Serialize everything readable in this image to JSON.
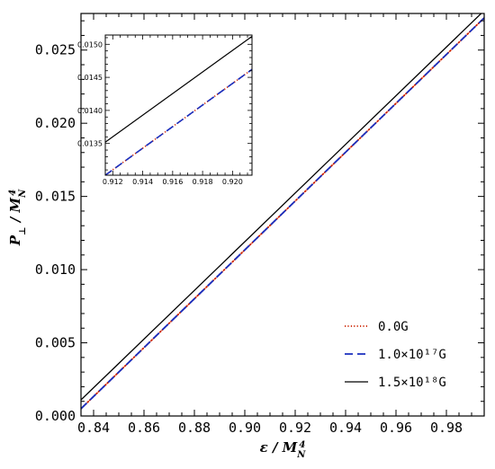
{
  "chart_data": [
    {
      "type": "line",
      "role": "main",
      "xlabel": "ε / M_N^4",
      "ylabel": "P_⊥ / M_N^4",
      "xlim": [
        0.835,
        0.995
      ],
      "ylim": [
        0.0,
        0.0275
      ],
      "xticks": [
        "0.84",
        "0.86",
        "0.88",
        "0.90",
        "0.92",
        "0.94",
        "0.96",
        "0.98"
      ],
      "xtick_values": [
        0.84,
        0.86,
        0.88,
        0.9,
        0.92,
        0.94,
        0.96,
        0.98
      ],
      "yticks": [
        "0.000",
        "0.005",
        "0.010",
        "0.015",
        "0.020",
        "0.025"
      ],
      "ytick_values": [
        0.0,
        0.005,
        0.01,
        0.015,
        0.02,
        0.025
      ],
      "grid": false,
      "legend_position": "bottom-right",
      "series": [
        {
          "name": "0.0G",
          "color": "#cc2200",
          "style": "dotted",
          "x": [
            0.835,
            0.995
          ],
          "y": [
            0.0005,
            0.0272
          ]
        },
        {
          "name": "1.0×10¹⁷G",
          "color": "#1a2fbf",
          "style": "dashed",
          "x": [
            0.835,
            0.995
          ],
          "y": [
            0.0005,
            0.0272
          ]
        },
        {
          "name": "1.5×10¹⁸G",
          "color": "#000000",
          "style": "solid",
          "x": [
            0.835,
            0.995
          ],
          "y": [
            0.0011,
            0.0277
          ]
        }
      ]
    },
    {
      "type": "line",
      "role": "inset",
      "xlim": [
        0.9115,
        0.9213
      ],
      "ylim": [
        0.01302,
        0.01514
      ],
      "xticks": [
        "0.912",
        "0.914",
        "0.916",
        "0.918",
        "0.920"
      ],
      "xtick_values": [
        0.912,
        0.914,
        0.916,
        0.918,
        0.92
      ],
      "yticks": [
        "0.0135",
        "0.0140",
        "0.0145",
        "0.0150"
      ],
      "ytick_values": [
        0.0135,
        0.014,
        0.0145,
        0.015
      ],
      "grid": false,
      "series": [
        {
          "color": "#cc2200",
          "style": "dotted",
          "x": [
            0.9115,
            0.9213
          ],
          "y": [
            0.01302,
            0.01462
          ]
        },
        {
          "color": "#1a2fbf",
          "style": "dashed",
          "x": [
            0.9115,
            0.9213
          ],
          "y": [
            0.01302,
            0.01462
          ]
        },
        {
          "color": "#000000",
          "style": "solid",
          "x": [
            0.9115,
            0.9213
          ],
          "y": [
            0.01352,
            0.01512
          ]
        }
      ]
    }
  ],
  "legend": {
    "items": [
      {
        "label": "0.0G",
        "color": "#cc2200",
        "style": "dotted"
      },
      {
        "label": "1.0×10¹⁷G",
        "color": "#1a2fbf",
        "style": "dashed"
      },
      {
        "label": "1.5×10¹⁸G",
        "color": "#000000",
        "style": "solid"
      }
    ]
  }
}
